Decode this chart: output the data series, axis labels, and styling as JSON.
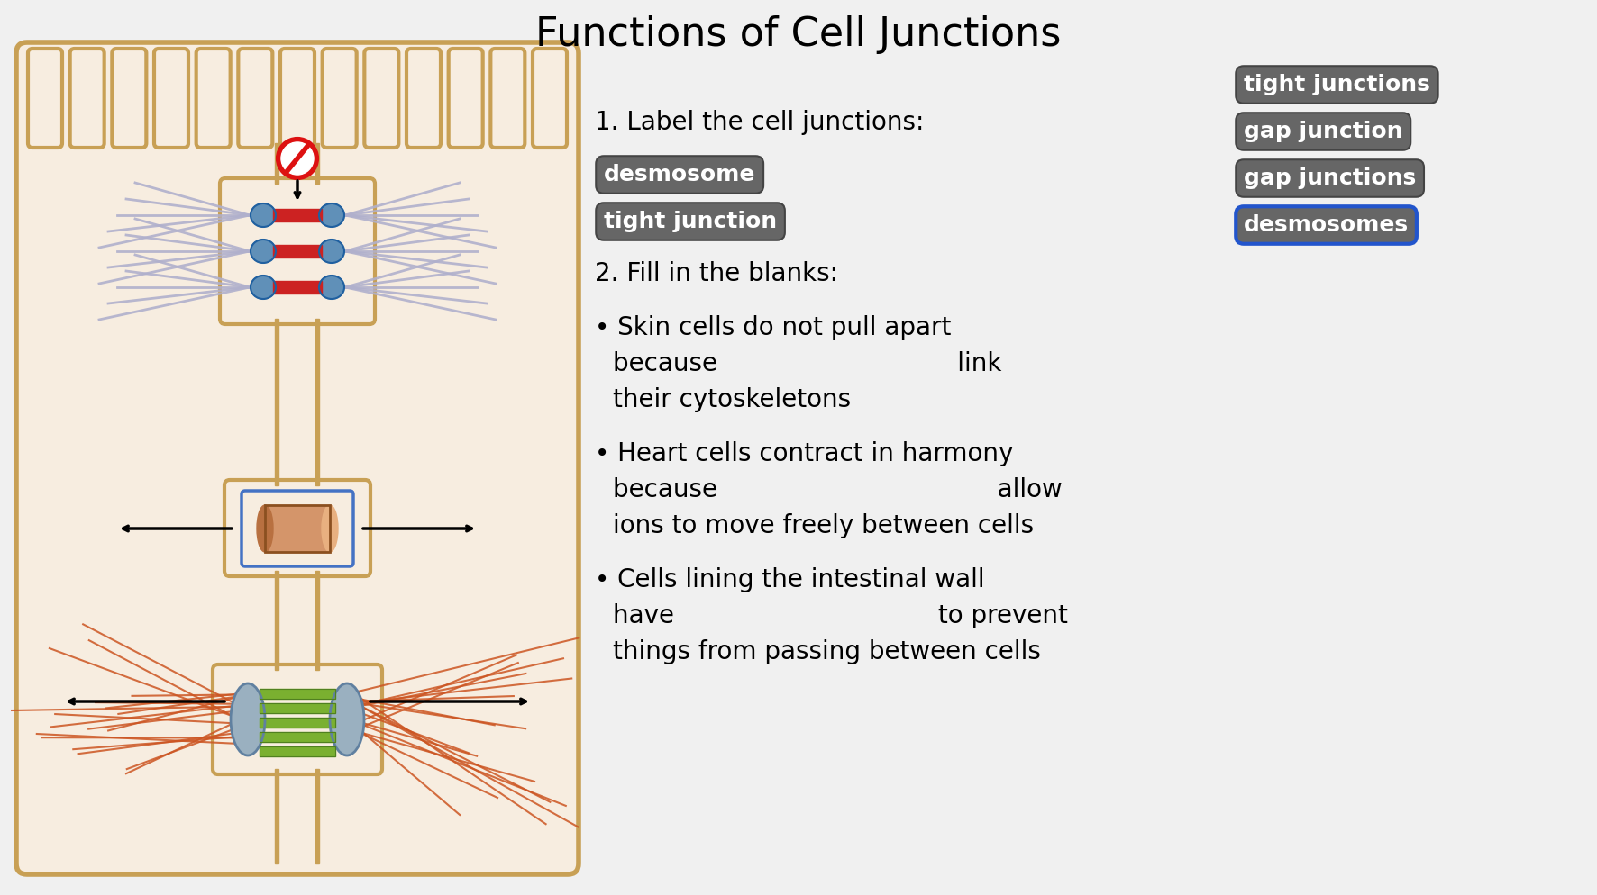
{
  "title": "Functions of Cell Junctions",
  "bg_color": "#f0f0f0",
  "cell_bg": "#f7ede0",
  "cell_border": "#c8a055",
  "label1": "1. Label the cell junctions:",
  "label2": "2. Fill in the blanks:",
  "box_labels_left": [
    "desmosome",
    "tight junction"
  ],
  "box_labels_right_top": [
    "tight junctions",
    "gap junction",
    "gap junctions"
  ],
  "box_label_selected": "desmosomes",
  "bullet1": [
    "• Skin cells do not pull apart",
    "     because                              link",
    "     their cytoskeletons"
  ],
  "bullet2": [
    "• Heart cells contract in harmony",
    "     because                                   allow",
    "     ions to move freely between cells"
  ],
  "bullet3": [
    "• Cells lining the intestinal wall",
    "     have                                 to prevent",
    "     things from passing between cells"
  ],
  "filament_color": "#b0b0cc",
  "red_bar_color": "#cc2222",
  "disc_color": "#6090b8",
  "green_bar_color": "#7ab030",
  "actin_color": "#cc5522",
  "cyl_color": "#d4956a",
  "cell_border_color": "#c8a055"
}
